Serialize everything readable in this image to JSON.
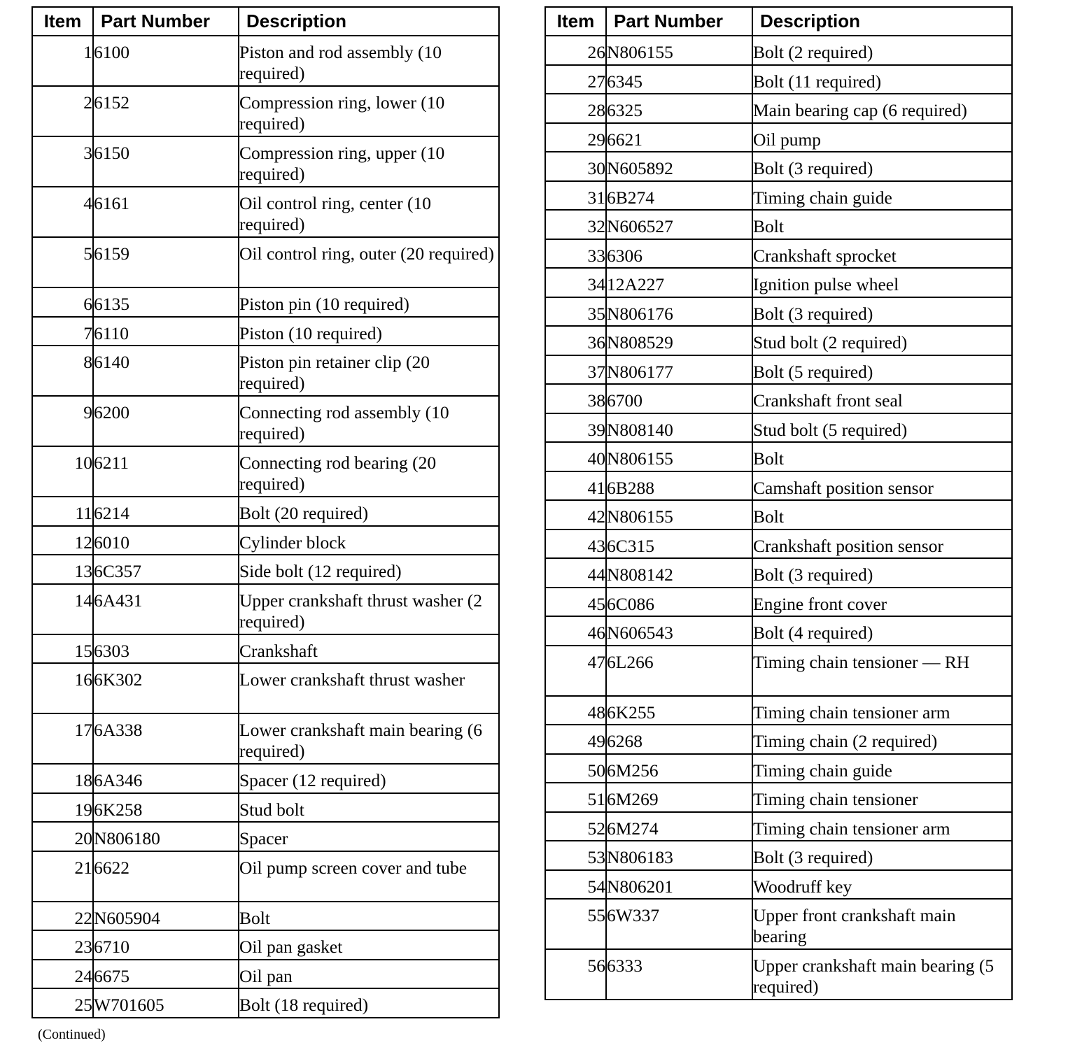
{
  "headers": {
    "item": "Item",
    "part_number": "Part Number",
    "description": "Description"
  },
  "left_table": [
    {
      "item": "1",
      "part": "6100",
      "desc": "Piston and rod assembly (10 required)"
    },
    {
      "item": "2",
      "part": "6152",
      "desc": "Compression ring, lower (10 required)"
    },
    {
      "item": "3",
      "part": "6150",
      "desc": "Compression ring, upper (10 required)"
    },
    {
      "item": "4",
      "part": "6161",
      "desc": "Oil control ring, center (10 required)"
    },
    {
      "item": "5",
      "part": "6159",
      "desc": "Oil control ring, outer (20 required)"
    },
    {
      "item": "6",
      "part": "6135",
      "desc": "Piston pin (10 required)"
    },
    {
      "item": "7",
      "part": "6110",
      "desc": "Piston (10 required)"
    },
    {
      "item": "8",
      "part": "6140",
      "desc": "Piston pin retainer clip (20 required)"
    },
    {
      "item": "9",
      "part": "6200",
      "desc": "Connecting rod assembly (10 required)"
    },
    {
      "item": "10",
      "part": "6211",
      "desc": "Connecting rod bearing (20 required)"
    },
    {
      "item": "11",
      "part": "6214",
      "desc": "Bolt (20 required)"
    },
    {
      "item": "12",
      "part": "6010",
      "desc": "Cylinder block"
    },
    {
      "item": "13",
      "part": "6C357",
      "desc": "Side bolt (12 required)"
    },
    {
      "item": "14",
      "part": "6A431",
      "desc": "Upper crankshaft thrust washer (2 required)"
    },
    {
      "item": "15",
      "part": "6303",
      "desc": "Crankshaft"
    },
    {
      "item": "16",
      "part": "6K302",
      "desc": "Lower crankshaft thrust washer"
    },
    {
      "item": "17",
      "part": "6A338",
      "desc": "Lower crankshaft main bearing (6 required)"
    },
    {
      "item": "18",
      "part": "6A346",
      "desc": "Spacer (12 required)"
    },
    {
      "item": "19",
      "part": "6K258",
      "desc": "Stud bolt"
    },
    {
      "item": "20",
      "part": "N806180",
      "desc": "Spacer"
    },
    {
      "item": "21",
      "part": "6622",
      "desc": "Oil pump screen cover and tube"
    },
    {
      "item": "22",
      "part": "N605904",
      "desc": "Bolt"
    },
    {
      "item": "23",
      "part": "6710",
      "desc": "Oil pan gasket"
    },
    {
      "item": "24",
      "part": "6675",
      "desc": "Oil pan"
    },
    {
      "item": "25",
      "part": "W701605",
      "desc": "Bolt (18 required)"
    }
  ],
  "right_table": [
    {
      "item": "26",
      "part": "N806155",
      "desc": "Bolt (2 required)"
    },
    {
      "item": "27",
      "part": "6345",
      "desc": "Bolt (11 required)"
    },
    {
      "item": "28",
      "part": "6325",
      "desc": "Main bearing cap (6 required)"
    },
    {
      "item": "29",
      "part": "6621",
      "desc": "Oil pump"
    },
    {
      "item": "30",
      "part": "N605892",
      "desc": "Bolt (3 required)"
    },
    {
      "item": "31",
      "part": "6B274",
      "desc": "Timing chain guide"
    },
    {
      "item": "32",
      "part": "N606527",
      "desc": "Bolt"
    },
    {
      "item": "33",
      "part": "6306",
      "desc": "Crankshaft sprocket"
    },
    {
      "item": "34",
      "part": "12A227",
      "desc": "Ignition pulse wheel"
    },
    {
      "item": "35",
      "part": "N806176",
      "desc": "Bolt (3 required)"
    },
    {
      "item": "36",
      "part": "N808529",
      "desc": "Stud bolt (2 required)"
    },
    {
      "item": "37",
      "part": "N806177",
      "desc": "Bolt (5 required)"
    },
    {
      "item": "38",
      "part": "6700",
      "desc": "Crankshaft front seal"
    },
    {
      "item": "39",
      "part": "N808140",
      "desc": "Stud bolt (5 required)"
    },
    {
      "item": "40",
      "part": "N806155",
      "desc": "Bolt"
    },
    {
      "item": "41",
      "part": "6B288",
      "desc": "Camshaft position sensor"
    },
    {
      "item": "42",
      "part": "N806155",
      "desc": "Bolt"
    },
    {
      "item": "43",
      "part": "6C315",
      "desc": "Crankshaft position sensor"
    },
    {
      "item": "44",
      "part": "N808142",
      "desc": "Bolt (3 required)"
    },
    {
      "item": "45",
      "part": "6C086",
      "desc": "Engine front cover"
    },
    {
      "item": "46",
      "part": "N606543",
      "desc": "Bolt (4 required)"
    },
    {
      "item": "47",
      "part": "6L266",
      "desc": "Timing chain tensioner — RH"
    },
    {
      "item": "48",
      "part": "6K255",
      "desc": "Timing chain tensioner arm"
    },
    {
      "item": "49",
      "part": "6268",
      "desc": "Timing chain (2 required)"
    },
    {
      "item": "50",
      "part": "6M256",
      "desc": "Timing chain guide"
    },
    {
      "item": "51",
      "part": "6M269",
      "desc": "Timing chain tensioner"
    },
    {
      "item": "52",
      "part": "6M274",
      "desc": "Timing chain tensioner arm"
    },
    {
      "item": "53",
      "part": "N806183",
      "desc": "Bolt (3 required)"
    },
    {
      "item": "54",
      "part": "N806201",
      "desc": "Woodruff key"
    },
    {
      "item": "55",
      "part": "6W337",
      "desc": "Upper front crankshaft main bearing"
    },
    {
      "item": "56",
      "part": "6333",
      "desc": "Upper crankshaft main bearing (5 required)"
    }
  ],
  "footer": {
    "continued": "(Continued)"
  }
}
